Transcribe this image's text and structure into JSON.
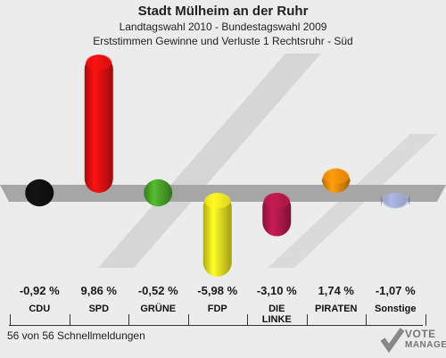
{
  "header": {
    "title": "Stadt Mülheim an der Ruhr",
    "subtitle": "Landtagswahl 2010 - Bundestagswahl 2009",
    "subtitle2": "Erststimmen Gewinne und Verluste 1 Rechtsruhr - Süd"
  },
  "footer": {
    "status": "56 von 56 Schnellmeldungen"
  },
  "logo": {
    "line1": "VOTE",
    "line2": "MANAGER"
  },
  "chart_data": {
    "type": "bar",
    "title": "Stadt Mülheim an der Ruhr",
    "categories": [
      "CDU",
      "SPD",
      "GRÜNE",
      "FDP",
      "DIE LINKE",
      "PIRATEN",
      "Sonstige"
    ],
    "values": [
      -0.92,
      9.86,
      -0.52,
      -5.98,
      -3.1,
      1.74,
      -1.07
    ],
    "value_labels": [
      "-0,92 %",
      "9,86 %",
      "-0,52 %",
      "-5,98 %",
      "-3,10 %",
      "1,74 %",
      "-1,07 %"
    ],
    "colors": [
      "#111111",
      "#e01010",
      "#4aa52a",
      "#e8e020",
      "#b0184a",
      "#f08a0a",
      "#9aa4cc"
    ],
    "unit": "%",
    "baseline": 0,
    "grid": false,
    "legend": "none"
  }
}
